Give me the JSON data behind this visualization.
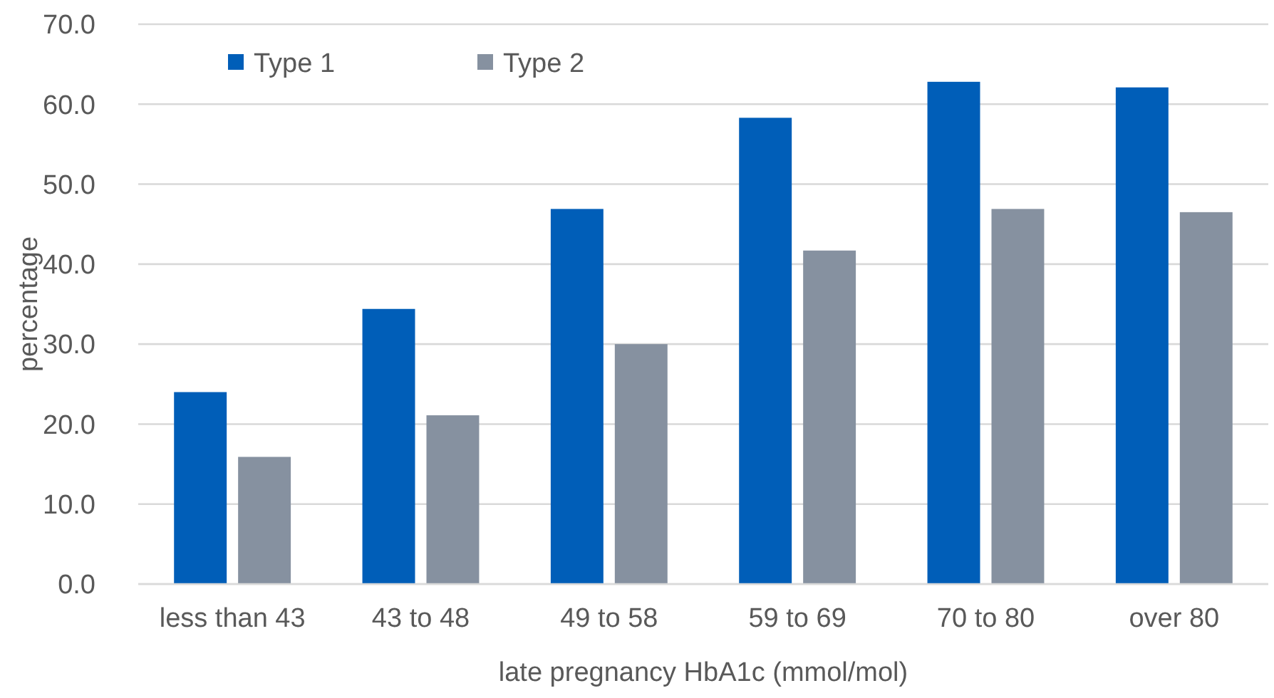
{
  "chart_data": {
    "type": "bar",
    "xlabel": "late pregnancy HbA1c  (mmol/mol)",
    "ylabel": "percentage",
    "categories": [
      "less than 43",
      "43 to 48",
      "49 to 58",
      "59 to 69",
      "70 to 80",
      "over 80"
    ],
    "series": [
      {
        "name": "Type 1",
        "color": "#005eb8",
        "values": [
          24.0,
          34.4,
          46.9,
          58.3,
          62.8,
          62.1
        ]
      },
      {
        "name": "Type 2",
        "color": "#8691a0",
        "values": [
          15.9,
          21.1,
          30.0,
          41.7,
          46.9,
          46.5
        ]
      }
    ],
    "ylim": [
      0,
      70
    ],
    "yticks": [
      {
        "value": 0,
        "label": "0.0"
      },
      {
        "value": 10,
        "label": "10.0"
      },
      {
        "value": 20,
        "label": "20.0"
      },
      {
        "value": 30,
        "label": "30.0"
      },
      {
        "value": 40,
        "label": "40.0"
      },
      {
        "value": 50,
        "label": "50.0"
      },
      {
        "value": 60,
        "label": "60.0"
      },
      {
        "value": 70,
        "label": "70.0"
      }
    ],
    "grid": true,
    "legend": "top left"
  }
}
